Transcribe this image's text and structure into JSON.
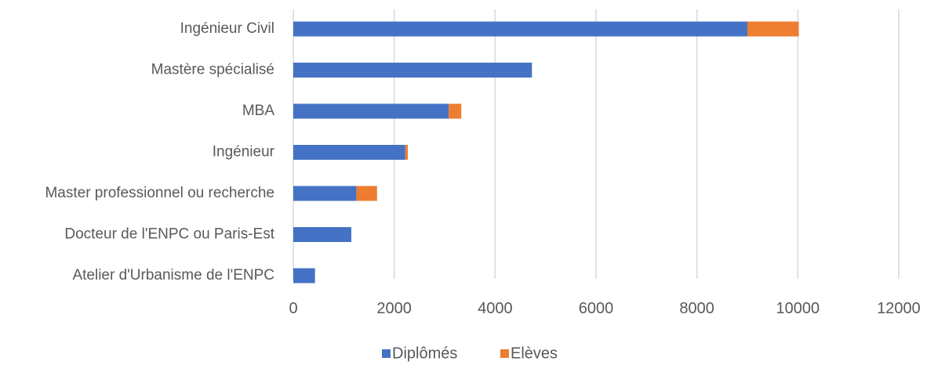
{
  "chart_data": {
    "type": "bar",
    "orientation": "horizontal",
    "stacked": true,
    "categories": [
      "Ingénieur Civil",
      "Mastère spécialisé",
      "MBA",
      "Ingénieur",
      "Master professionnel ou recherche",
      "Docteur de l'ENPC ou Paris-Est",
      "Atelier d'Urbanisme de l'ENPC"
    ],
    "series": [
      {
        "name": "Diplômés",
        "color": "#4472C4",
        "values": [
          9000,
          4730,
          3080,
          2220,
          1250,
          1150,
          430
        ]
      },
      {
        "name": "Elèves",
        "color": "#ED7D31",
        "values": [
          1020,
          0,
          250,
          50,
          410,
          0,
          0
        ]
      }
    ],
    "xlim": [
      0,
      12000
    ],
    "xticks": [
      "0",
      "2000",
      "4000",
      "6000",
      "8000",
      "10000",
      "12000"
    ],
    "grid": "vertical",
    "legend_position": "bottom"
  }
}
